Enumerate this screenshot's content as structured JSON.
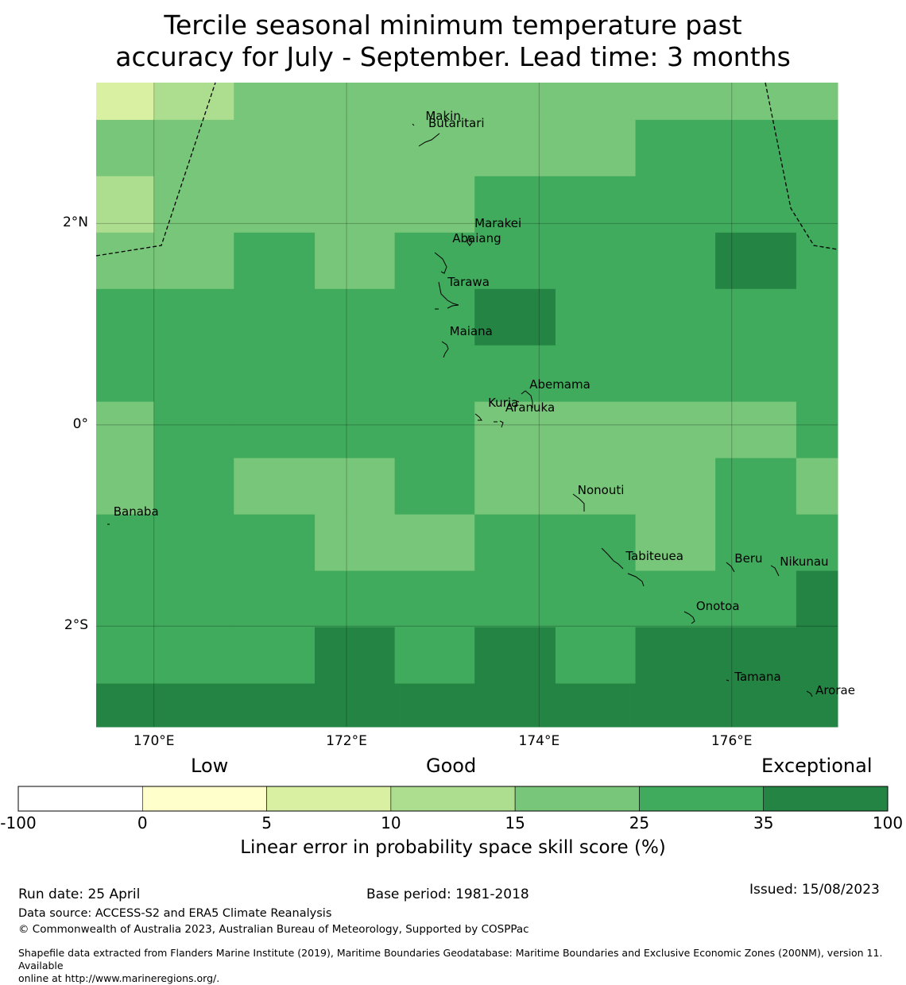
{
  "title_line1": "Tercile seasonal minimum temperature past",
  "title_line2": "accuracy for July - September. Lead time: 3 months",
  "map": {
    "lon_range": [
      169.4,
      177.1
    ],
    "lat_range": [
      -3.0,
      3.4
    ],
    "lat_ticks": [
      {
        "value": 2,
        "label": "2°N"
      },
      {
        "value": 0,
        "label": "0°"
      },
      {
        "value": -2,
        "label": "2°S"
      }
    ],
    "lon_ticks": [
      {
        "value": 170,
        "label": "170°E"
      },
      {
        "value": 172,
        "label": "172°E"
      },
      {
        "value": 174,
        "label": "174°E"
      },
      {
        "value": 176,
        "label": "176°E"
      }
    ],
    "places": [
      {
        "name": "Makin",
        "lon": 172.77,
        "lat": 3.07
      },
      {
        "name": "Butaritari",
        "lon": 172.8,
        "lat": 3.0
      },
      {
        "name": "Marakei",
        "lon": 173.28,
        "lat": 2.0
      },
      {
        "name": "Abaiang",
        "lon": 173.05,
        "lat": 1.85
      },
      {
        "name": "Tarawa",
        "lon": 173.0,
        "lat": 1.42
      },
      {
        "name": "Maiana",
        "lon": 173.02,
        "lat": 0.93
      },
      {
        "name": "Abemama",
        "lon": 173.85,
        "lat": 0.4
      },
      {
        "name": "Kuria",
        "lon": 173.42,
        "lat": 0.22
      },
      {
        "name": "Aranuka",
        "lon": 173.6,
        "lat": 0.17
      },
      {
        "name": "Nonouti",
        "lon": 174.35,
        "lat": -0.65
      },
      {
        "name": "Banaba",
        "lon": 169.53,
        "lat": -0.86
      },
      {
        "name": "Beru",
        "lon": 175.98,
        "lat": -1.33
      },
      {
        "name": "Nikunau",
        "lon": 176.45,
        "lat": -1.36
      },
      {
        "name": "Tabiteuea",
        "lon": 174.85,
        "lat": -1.3
      },
      {
        "name": "Onotoa",
        "lon": 175.58,
        "lat": -1.8
      },
      {
        "name": "Tamana",
        "lon": 175.98,
        "lat": -2.5
      },
      {
        "name": "Arorae",
        "lon": 176.82,
        "lat": -2.64
      }
    ],
    "grid": {
      "lon_edges": [
        169.4,
        170.0,
        170.83,
        171.67,
        172.5,
        173.33,
        174.17,
        175.0,
        175.83,
        176.67,
        177.1
      ],
      "lat_edges": [
        3.4,
        3.03,
        2.47,
        1.91,
        1.35,
        0.79,
        0.23,
        -0.33,
        -0.89,
        -1.45,
        -2.01,
        -2.57,
        -3.0
      ],
      "classes": [
        [
          2,
          3,
          4,
          4,
          4,
          4,
          4,
          4,
          4,
          4
        ],
        [
          4,
          4,
          4,
          4,
          4,
          4,
          4,
          5,
          5,
          5
        ],
        [
          3,
          4,
          4,
          4,
          4,
          5,
          5,
          5,
          5,
          5
        ],
        [
          4,
          4,
          5,
          4,
          5,
          5,
          5,
          5,
          6,
          5
        ],
        [
          5,
          5,
          5,
          5,
          5,
          6,
          5,
          5,
          5,
          5
        ],
        [
          5,
          5,
          5,
          5,
          5,
          5,
          5,
          5,
          5,
          5
        ],
        [
          4,
          5,
          5,
          5,
          5,
          4,
          4,
          4,
          4,
          5
        ],
        [
          4,
          5,
          4,
          4,
          5,
          4,
          4,
          4,
          5,
          4
        ],
        [
          5,
          5,
          5,
          4,
          4,
          5,
          5,
          4,
          5,
          5
        ],
        [
          5,
          5,
          5,
          5,
          5,
          5,
          5,
          5,
          5,
          6
        ],
        [
          5,
          5,
          5,
          6,
          5,
          6,
          5,
          6,
          6,
          6
        ],
        [
          6,
          6,
          6,
          6,
          6,
          6,
          6,
          6,
          6,
          6
        ]
      ]
    }
  },
  "colorbar": {
    "words": {
      "low": "Low",
      "good": "Good",
      "exceptional": "Exceptional"
    },
    "ticks": [
      "-100",
      "0",
      "5",
      "10",
      "15",
      "25",
      "35",
      "100"
    ],
    "colors": [
      "#ffffff",
      "#ffffcc",
      "#d9f0a3",
      "#addd8e",
      "#78c679",
      "#41ab5d",
      "#238443"
    ],
    "label": "Linear error in probability space skill score (%)"
  },
  "footer": {
    "run_date": "Run date: 25 April",
    "base_period": "Base period: 1981-2018",
    "issued": "Issued: 15/08/2023",
    "data_source": "Data source: ACCESS-S2 and ERA5 Climate Reanalysis",
    "copyright": "© Commonwealth of Australia 2023, Australian Bureau of Meteorology, Supported by COSPPac",
    "shapefile_line1": "Shapefile data extracted from Flanders Marine Institute (2019), Maritime Boundaries Geodatabase: Maritime Boundaries and Exclusive Economic Zones (200NM), version 11. Available",
    "shapefile_line2": "online at http://www.marineregions.org/."
  }
}
